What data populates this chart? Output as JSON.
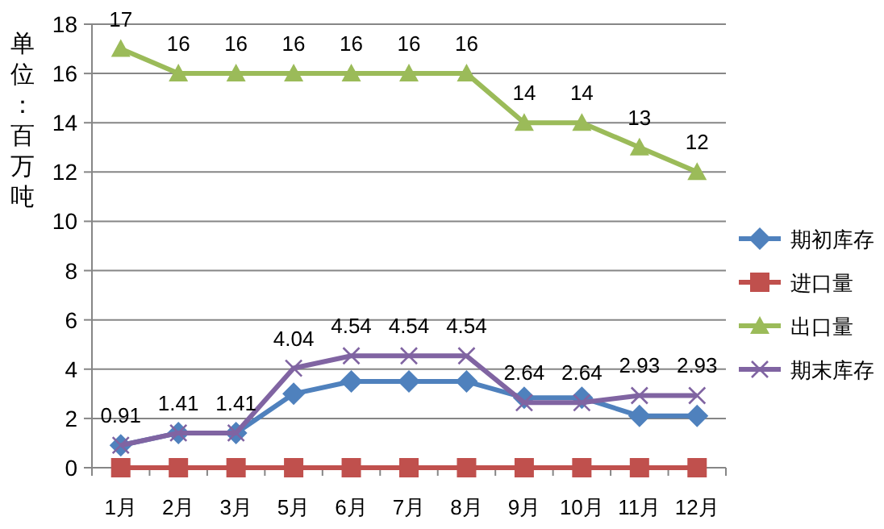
{
  "chart_data": {
    "type": "line",
    "ylabel": "单位：百万吨",
    "categories": [
      "1月",
      "2月",
      "3月",
      "5月",
      "6月",
      "7月",
      "8月",
      "9月",
      "10月",
      "11月",
      "12月"
    ],
    "ylim": [
      0,
      18
    ],
    "yticks": [
      0,
      2,
      4,
      6,
      8,
      10,
      12,
      14,
      16,
      18
    ],
    "grid": "y",
    "legend": "right",
    "series": [
      {
        "name": "期初库存",
        "color": "#4f81bd",
        "marker": "diamond",
        "values": [
          0.91,
          1.41,
          1.41,
          3.0,
          3.5,
          3.5,
          3.5,
          2.84,
          2.84,
          2.1,
          2.1
        ]
      },
      {
        "name": "进口量",
        "color": "#c0504d",
        "marker": "square",
        "values": [
          0,
          0,
          0,
          0,
          0,
          0,
          0,
          0,
          0,
          0,
          0
        ]
      },
      {
        "name": "出口量",
        "color": "#9bbb59",
        "marker": "triangle",
        "values": [
          17,
          16,
          16,
          16,
          16,
          16,
          16,
          14,
          14,
          13,
          12
        ],
        "value_labels": [
          "17",
          "16",
          "16",
          "16",
          "16",
          "16",
          "16",
          "14",
          "14",
          "13",
          "12"
        ]
      },
      {
        "name": "期末库存",
        "color": "#8064a2",
        "marker": "cross",
        "values": [
          0.91,
          1.41,
          1.41,
          4.04,
          4.54,
          4.54,
          4.54,
          2.64,
          2.64,
          2.93,
          2.93
        ],
        "value_labels": [
          "0.91",
          "1.41",
          "1.41",
          "4.04",
          "4.54",
          "4.54",
          "4.54",
          "2.64",
          "2.64",
          "2.93",
          "2.93"
        ]
      }
    ]
  }
}
